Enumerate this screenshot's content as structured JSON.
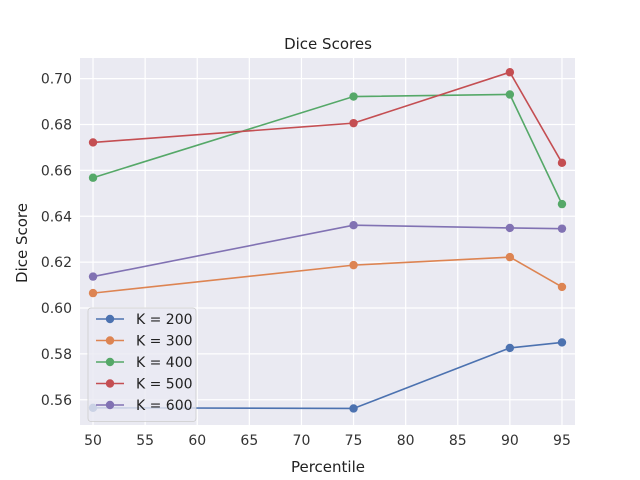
{
  "chart_data": {
    "type": "line",
    "title": "Dice Scores",
    "xlabel": "Percentile",
    "ylabel": "Dice Score",
    "x": [
      50,
      75,
      90,
      95
    ],
    "xlim": [
      48.75,
      96.25
    ],
    "ylim": [
      0.549,
      0.709
    ],
    "xticks": [
      50,
      55,
      60,
      65,
      70,
      75,
      80,
      85,
      90,
      95
    ],
    "yticks": [
      0.56,
      0.58,
      0.6,
      0.62,
      0.64,
      0.66,
      0.68,
      0.7
    ],
    "ytick_labels": [
      "0.56",
      "0.58",
      "0.60",
      "0.62",
      "0.64",
      "0.66",
      "0.68",
      "0.70"
    ],
    "grid": true,
    "legend_position": "lower-left",
    "series": [
      {
        "name": "K = 200",
        "color": "#4c72b0",
        "values": [
          0.5565,
          0.5562,
          0.5826,
          0.585
        ]
      },
      {
        "name": "K = 300",
        "color": "#dd8452",
        "values": [
          0.6065,
          0.6187,
          0.6222,
          0.6092
        ]
      },
      {
        "name": "K = 400",
        "color": "#55a868",
        "values": [
          0.6568,
          0.6922,
          0.6931,
          0.6453
        ]
      },
      {
        "name": "K = 500",
        "color": "#c44e52",
        "values": [
          0.6722,
          0.6806,
          0.7028,
          0.6633
        ]
      },
      {
        "name": "K = 600",
        "color": "#8172b3",
        "values": [
          0.6137,
          0.6361,
          0.6349,
          0.6346
        ]
      }
    ]
  }
}
